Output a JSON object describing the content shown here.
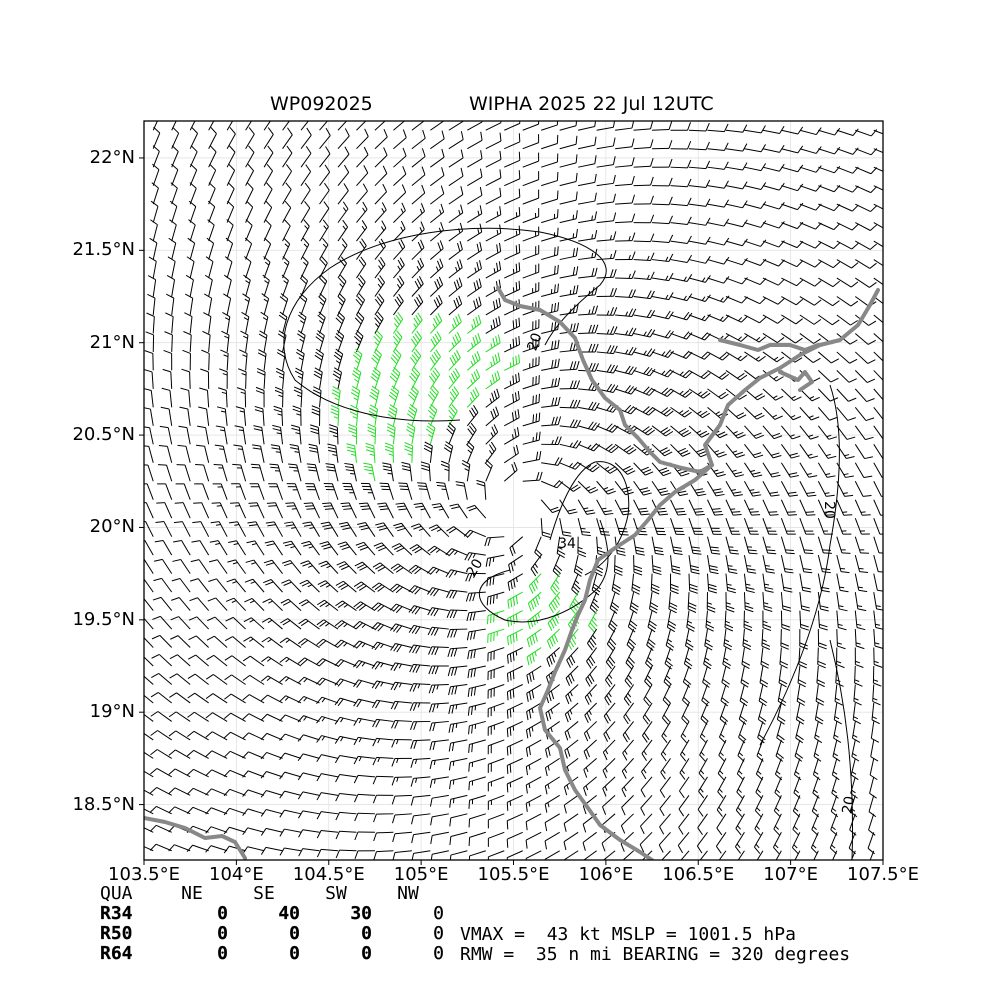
{
  "title": {
    "storm_id": "WP092025",
    "storm_name_time": "WIPHA 2025 22 Jul 12UTC"
  },
  "map": {
    "type": "wind-barb analysis map",
    "lon_range": [
      103.5,
      107.5
    ],
    "lat_range": [
      18.2,
      22.2
    ],
    "center": {
      "lon": 105.5,
      "lat": 20.1
    },
    "grid": true,
    "x_ticks": [
      "103.5°E",
      "104°E",
      "104.5°E",
      "105°E",
      "105.5°E",
      "106°E",
      "106.5°E",
      "107°E",
      "107.5°E"
    ],
    "y_ticks": [
      "22°N",
      "21.5°N",
      "21°N",
      "20.5°N",
      "20°N",
      "19.5°N",
      "19°N",
      "18.5°N"
    ],
    "contour_labels": [
      "20",
      "20",
      "34",
      "20",
      "20"
    ],
    "colors": {
      "barb_default": "#000000",
      "barb_34kt": "#22dd22",
      "barb_50kt": "#e8a317",
      "coastline": "#888888",
      "contour": "#000000"
    }
  },
  "wind_radii": {
    "headers": [
      "QUA",
      "NE",
      "SE",
      "SW",
      "NW"
    ],
    "rows": [
      {
        "label": "R34",
        "values": [
          "0",
          "40",
          "30",
          "0"
        ]
      },
      {
        "label": "R50",
        "values": [
          "0",
          "0",
          "0",
          "0"
        ]
      },
      {
        "label": "R64",
        "values": [
          "0",
          "0",
          "0",
          "0"
        ]
      }
    ]
  },
  "stats": {
    "line1": "VMAX =  43 kt MSLP = 1001.5 hPa",
    "line2": "RMW =  35 n mi BEARING = 320 degrees"
  }
}
